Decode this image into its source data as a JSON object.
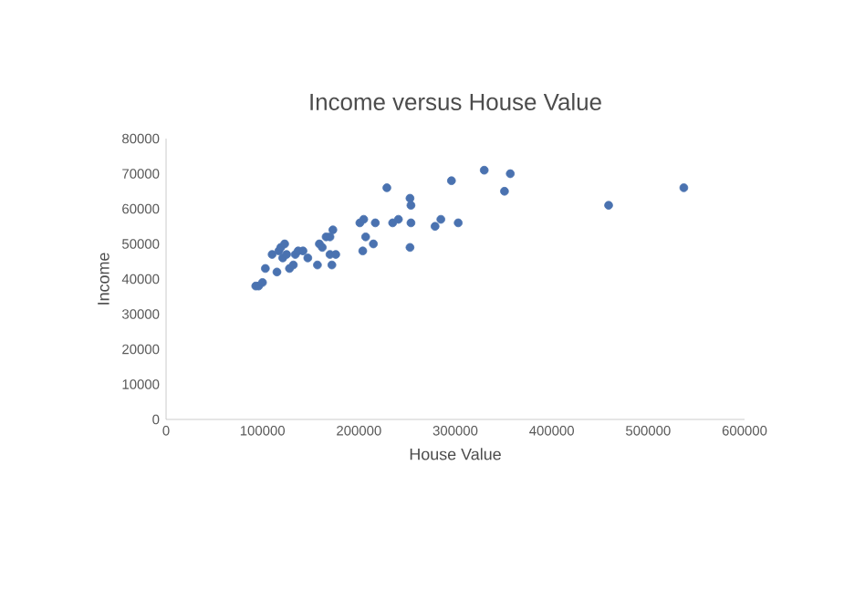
{
  "chart_data": {
    "type": "scatter",
    "title": "Income versus House Value",
    "xlabel": "House Value",
    "ylabel": "Income",
    "xlim": [
      0,
      600000
    ],
    "ylim": [
      0,
      80000
    ],
    "xticks": [
      0,
      100000,
      200000,
      300000,
      400000,
      500000,
      600000
    ],
    "yticks": [
      0,
      10000,
      20000,
      30000,
      40000,
      50000,
      60000,
      70000,
      80000
    ],
    "grid": false,
    "marker": "circle",
    "series": [
      {
        "color": "#4a72b0",
        "x": [
          93000,
          96000,
          100000,
          103000,
          110000,
          115000,
          117000,
          119000,
          121000,
          123000,
          125000,
          128000,
          132000,
          134000,
          137000,
          142000,
          147000,
          157000,
          159000,
          162000,
          166000,
          170000,
          173000,
          172000,
          170000,
          176000,
          201000,
          205000,
          204000,
          207000,
          215000,
          217000,
          229000,
          235000,
          241000,
          253000,
          254000,
          254000,
          253000,
          279000,
          285000,
          296000,
          303000,
          330000,
          351000,
          357000,
          459000,
          537000
        ],
        "values": [
          38000,
          38000,
          39000,
          43000,
          47000,
          42000,
          48000,
          49000,
          46000,
          50000,
          47000,
          43000,
          44000,
          47000,
          48000,
          48000,
          46000,
          44000,
          50000,
          49000,
          52000,
          52000,
          54000,
          44000,
          47000,
          47000,
          56000,
          57000,
          48000,
          52000,
          50000,
          56000,
          66000,
          56000,
          57000,
          63000,
          61000,
          56000,
          49000,
          55000,
          57000,
          68000,
          56000,
          71000,
          65000,
          70000,
          61000,
          66000
        ]
      }
    ]
  }
}
